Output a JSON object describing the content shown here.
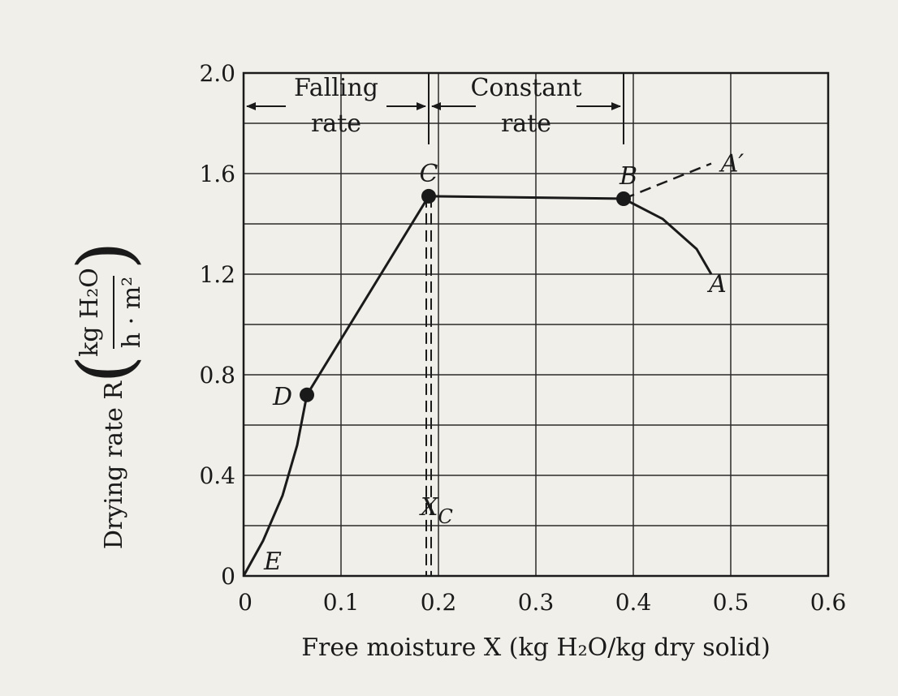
{
  "chart_data": {
    "type": "line",
    "xlabel": "Free moisture X (kg H₂O/kg dry solid)",
    "ylabel": "Drying rate R",
    "ylabel_units_num": "kg H₂O",
    "ylabel_units_den": "h · m²",
    "xlim": [
      0,
      0.6
    ],
    "ylim": [
      0,
      2.0
    ],
    "x_ticks": [
      "0",
      "0.1",
      "0.2",
      "0.3",
      "0.4",
      "0.5",
      "0.6"
    ],
    "y_ticks": [
      "0",
      "0.4",
      "0.8",
      "1.2",
      "1.6",
      "2.0"
    ],
    "grid": true,
    "curve": [
      {
        "x": 0.0,
        "y": 0.0
      },
      {
        "x": 0.02,
        "y": 0.14
      },
      {
        "x": 0.04,
        "y": 0.32
      },
      {
        "x": 0.055,
        "y": 0.52
      },
      {
        "x": 0.065,
        "y": 0.72
      },
      {
        "x": 0.19,
        "y": 1.51
      },
      {
        "x": 0.39,
        "y": 1.5
      },
      {
        "x": 0.43,
        "y": 1.42
      },
      {
        "x": 0.465,
        "y": 1.3
      },
      {
        "x": 0.48,
        "y": 1.2
      }
    ],
    "dashed_extension": [
      {
        "x": 0.39,
        "y": 1.5
      },
      {
        "x": 0.48,
        "y": 1.64
      }
    ],
    "critical_moisture": {
      "x": 0.19,
      "label_main": "X",
      "label_sub": "C"
    },
    "points": [
      {
        "label": "C",
        "x": 0.19,
        "y": 1.51,
        "marker": true
      },
      {
        "label": "B",
        "x": 0.39,
        "y": 1.5,
        "marker": true
      },
      {
        "label": "D",
        "x": 0.065,
        "y": 0.72,
        "marker": true
      },
      {
        "label": "A",
        "x": 0.48,
        "y": 1.2,
        "marker": false
      },
      {
        "label": "A′",
        "x": 0.48,
        "y": 1.64,
        "marker": false
      },
      {
        "label": "E",
        "x": 0.0,
        "y": 0.0,
        "marker": false
      }
    ],
    "regions": [
      {
        "line1": "Falling",
        "line2": "rate",
        "x_from": 0.0,
        "x_to": 0.19
      },
      {
        "line1": "Constant",
        "line2": "rate",
        "x_from": 0.19,
        "x_to": 0.39
      }
    ]
  }
}
